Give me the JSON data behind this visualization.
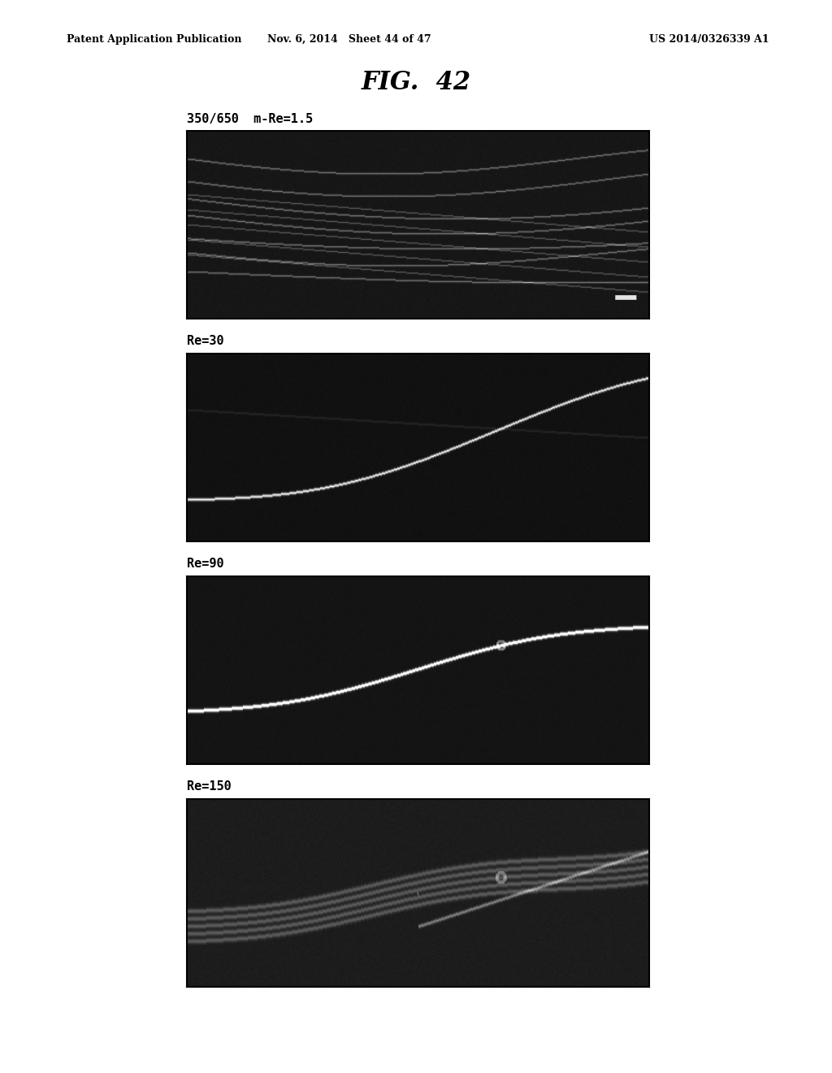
{
  "title": "FIG.  42",
  "header_left": "Patent Application Publication",
  "header_mid": "Nov. 6, 2014   Sheet 44 of 47",
  "header_right": "US 2014/0326339 A1",
  "panels": [
    {
      "label": "350/650  m-Re=1.5",
      "type": "multi_stream",
      "description": "multiple faint curved streams with noise, top panel"
    },
    {
      "label": "Re=30",
      "type": "single_stream_low",
      "description": "single bright white curved stream going from lower-left upward to right"
    },
    {
      "label": "Re=90",
      "type": "single_stream_bright",
      "description": "single very bright white curved stream, brighter, similar curve"
    },
    {
      "label": "Re=150",
      "type": "single_stream_dim",
      "description": "dimmer broader stream, more diffuse, faint curved band"
    }
  ],
  "background_color": "#ffffff",
  "image_bg": "#0a0a0a",
  "panel_border_color": "#000000",
  "label_fontsize": 11,
  "title_fontsize": 22
}
